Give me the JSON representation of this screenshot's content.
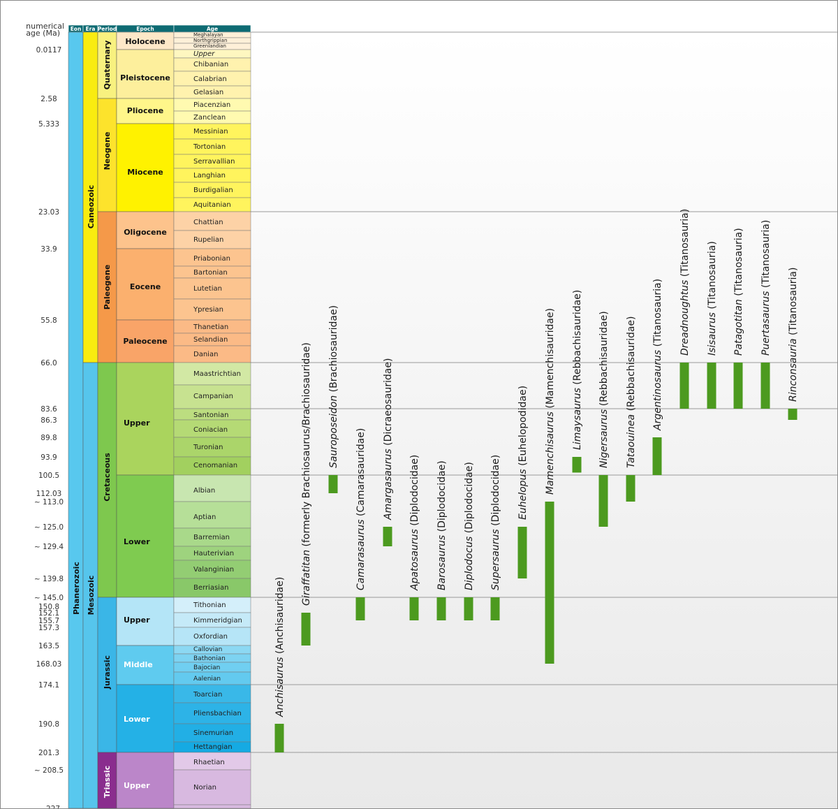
{
  "chart_data": {
    "type": "range-bar timeline",
    "title": "",
    "yaxis_label": "numerical age (Ma)",
    "y_order": "top-younger, bottom-older, piecewise scale per geologic stage",
    "header": {
      "eon": "Eon",
      "era": "Era",
      "period": "Period",
      "epoch": "Epoch",
      "age": "Age"
    },
    "tick_labels": [
      {
        "ma": 0.0117,
        "label": "0.0117"
      },
      {
        "ma": 2.58,
        "label": "2.58"
      },
      {
        "ma": 5.333,
        "label": "5.333"
      },
      {
        "ma": 23.03,
        "label": "23.03"
      },
      {
        "ma": 33.9,
        "label": "33.9"
      },
      {
        "ma": 55.8,
        "label": "55.8"
      },
      {
        "ma": 66.0,
        "label": "66.0"
      },
      {
        "ma": 83.6,
        "label": "83.6"
      },
      {
        "ma": 86.3,
        "label": "86.3"
      },
      {
        "ma": 89.8,
        "label": "89.8"
      },
      {
        "ma": 93.9,
        "label": "93.9"
      },
      {
        "ma": 100.5,
        "label": "100.5"
      },
      {
        "ma": 112.03,
        "label": "112.03"
      },
      {
        "ma": 113.0,
        "label": "~ 113.0"
      },
      {
        "ma": 125.0,
        "label": "~ 125.0"
      },
      {
        "ma": 129.4,
        "label": "~ 129.4"
      },
      {
        "ma": 139.8,
        "label": "~ 139.8"
      },
      {
        "ma": 145.0,
        "label": "~ 145.0"
      },
      {
        "ma": 150.8,
        "label": "150.8"
      },
      {
        "ma": 152.1,
        "label": "152.1"
      },
      {
        "ma": 155.7,
        "label": "155.7"
      },
      {
        "ma": 157.3,
        "label": "157.3"
      },
      {
        "ma": 163.5,
        "label": "163.5"
      },
      {
        "ma": 168.03,
        "label": "168.03"
      },
      {
        "ma": 174.1,
        "label": "174.1"
      },
      {
        "ma": 190.8,
        "label": "190.8"
      },
      {
        "ma": 201.3,
        "label": "201.3"
      },
      {
        "ma": 208.5,
        "label": "~ 208.5"
      },
      {
        "ma": 227.0,
        "label": "~ 227"
      }
    ],
    "boundary_lines_ma": [
      0,
      23.03,
      66.0,
      83.6,
      100.5,
      145.0,
      174.1,
      201.3
    ],
    "eons": [
      {
        "name": "Phanerozoic",
        "start": 0,
        "end": 227,
        "color": "#58c8ee"
      }
    ],
    "eras": [
      {
        "name": "Caneozoic",
        "start": 0,
        "end": 66.0,
        "color": "#f9ec10"
      },
      {
        "name": "Mesozoic",
        "start": 66.0,
        "end": 227,
        "color": "#56c5ec"
      }
    ],
    "periods": [
      {
        "name": "Quaternary",
        "start": 0,
        "end": 2.58,
        "color": "#f8f17f"
      },
      {
        "name": "Neogene",
        "start": 2.58,
        "end": 23.03,
        "color": "#fde32c"
      },
      {
        "name": "Paleogene",
        "start": 23.03,
        "end": 66.0,
        "color": "#f59949"
      },
      {
        "name": "Cretaceous",
        "start": 66.0,
        "end": 145.0,
        "color": "#7ec84e"
      },
      {
        "name": "Jurassic",
        "start": 145.0,
        "end": 201.3,
        "color": "#3ab6e7"
      },
      {
        "name": "Triassic",
        "start": 201.3,
        "end": 227,
        "color": "#8a2d8e"
      }
    ],
    "epochs": [
      {
        "name": "Holocene",
        "start": 0,
        "end": 0.0117,
        "color": "#fde8c8"
      },
      {
        "name": "Pleistocene",
        "start": 0.0117,
        "end": 2.58,
        "color": "#fdef9c"
      },
      {
        "name": "Pliocene",
        "start": 2.58,
        "end": 5.333,
        "color": "#fff68a"
      },
      {
        "name": "Miocene",
        "start": 5.333,
        "end": 23.03,
        "color": "#fff200"
      },
      {
        "name": "Oligocene",
        "start": 23.03,
        "end": 33.9,
        "color": "#fdc38c"
      },
      {
        "name": "Eocene",
        "start": 33.9,
        "end": 55.8,
        "color": "#fbb06e"
      },
      {
        "name": "Paleocene",
        "start": 55.8,
        "end": 66.0,
        "color": "#f9a468"
      },
      {
        "name": "Upper",
        "start": 66.0,
        "end": 100.5,
        "color": "#aad45d"
      },
      {
        "name": "Lower",
        "start": 100.5,
        "end": 145.0,
        "color": "#7fcb50"
      },
      {
        "name": "Upper",
        "start": 145.0,
        "end": 163.5,
        "color": "#b4e5f7"
      },
      {
        "name": "Middle",
        "start": 163.5,
        "end": 174.1,
        "color": "#5fcbef"
      },
      {
        "name": "Lower",
        "start": 174.1,
        "end": 201.3,
        "color": "#24b1e6"
      },
      {
        "name": "Upper",
        "start": 201.3,
        "end": 227,
        "color": "#bb86c9"
      }
    ],
    "ages": [
      {
        "name": "Meghalayan",
        "color": "#fef0d8"
      },
      {
        "name": "Northgrippian",
        "color": "#fef0d8"
      },
      {
        "name": "Greenlandian",
        "color": "#fef0d8"
      },
      {
        "name": "Upper",
        "color": "#fef7c0",
        "italic": true
      },
      {
        "name": "Chibanian",
        "color": "#fff2ae"
      },
      {
        "name": "Calabrian",
        "color": "#fff2ae"
      },
      {
        "name": "Gelasian",
        "color": "#fff2ae"
      },
      {
        "name": "Piacenzian",
        "color": "#fffab0"
      },
      {
        "name": "Zanclean",
        "color": "#fffab0"
      },
      {
        "name": "Messinian",
        "color": "#fff45d"
      },
      {
        "name": "Tortonian",
        "color": "#fff45d"
      },
      {
        "name": "Serravallian",
        "color": "#fff45d"
      },
      {
        "name": "Langhian",
        "color": "#fff45d"
      },
      {
        "name": "Burdigalian",
        "color": "#fff45d"
      },
      {
        "name": "Aquitanian",
        "color": "#fff45d"
      },
      {
        "name": "Chattian",
        "color": "#fdd2a6"
      },
      {
        "name": "Rupelian",
        "color": "#fdd2a6"
      },
      {
        "name": "Priabonian",
        "color": "#fcc48f"
      },
      {
        "name": "Bartonian",
        "color": "#fcc48f"
      },
      {
        "name": "Lutetian",
        "color": "#fcc48f"
      },
      {
        "name": "Ypresian",
        "color": "#fcc48f"
      },
      {
        "name": "Thanetian",
        "color": "#fbba86"
      },
      {
        "name": "Selandian",
        "color": "#fbba86"
      },
      {
        "name": "Danian",
        "color": "#fbba86"
      },
      {
        "name": "Maastrichtian",
        "color": "#d2e8a4"
      },
      {
        "name": "Campanian",
        "color": "#c7e290"
      },
      {
        "name": "Santonian",
        "color": "#bcdd80"
      },
      {
        "name": "Coniacian",
        "color": "#b5da75"
      },
      {
        "name": "Turonian",
        "color": "#abd56a"
      },
      {
        "name": "Cenomanian",
        "color": "#a2d05f"
      },
      {
        "name": "Albian",
        "color": "#c8e6b0"
      },
      {
        "name": "Aptian",
        "color": "#b6df98"
      },
      {
        "name": "Barremian",
        "color": "#a9d98a"
      },
      {
        "name": "Hauterivian",
        "color": "#9ed37e"
      },
      {
        "name": "Valanginian",
        "color": "#93cd73"
      },
      {
        "name": "Berriasian",
        "color": "#89c869"
      },
      {
        "name": "Tithonian",
        "color": "#d4effa"
      },
      {
        "name": "Kimmeridgian",
        "color": "#c5eaf8"
      },
      {
        "name": "Oxfordian",
        "color": "#b6e5f7"
      },
      {
        "name": "Callovian",
        "color": "#8cd8f3"
      },
      {
        "name": "Bathonian",
        "color": "#7dd3f2"
      },
      {
        "name": "Bajocian",
        "color": "#70cff1"
      },
      {
        "name": "Aalenian",
        "color": "#63caef"
      },
      {
        "name": "Toarcian",
        "color": "#39b8e8"
      },
      {
        "name": "Pliensbachian",
        "color": "#2db3e7"
      },
      {
        "name": "Sinemurian",
        "color": "#22afe5"
      },
      {
        "name": "Hettangian",
        "color": "#15aae3"
      },
      {
        "name": "Rhaetian",
        "color": "#e2c9e8"
      },
      {
        "name": "Norian",
        "color": "#d8b9e0"
      }
    ],
    "series": [
      {
        "genus": "Anchisaurus",
        "clade": "(Anchisauridae)",
        "start_ma": 190.8,
        "end_ma": 201.3
      },
      {
        "genus": "Giraffatitan",
        "clade": "(formerly Brachiosaurus/Brachiosauridae)",
        "start_ma": 152.1,
        "end_ma": 163.5
      },
      {
        "genus": "Sauroposeidon",
        "clade": "(Brachiosauridae)",
        "start_ma": 100.5,
        "end_ma": 112.03
      },
      {
        "genus": "Camarasaurus",
        "clade": "(Camarasauridae)",
        "start_ma": 145.0,
        "end_ma": 155.7
      },
      {
        "genus": "Amargasaurus",
        "clade": "(Dicraeosauridae)",
        "start_ma": 125.0,
        "end_ma": 129.4
      },
      {
        "genus": "Apatosaurus",
        "clade": "(Diplodocidae)",
        "start_ma": 145.0,
        "end_ma": 155.7
      },
      {
        "genus": "Barosaurus",
        "clade": "(Diplodocidae)",
        "start_ma": 145.0,
        "end_ma": 155.7
      },
      {
        "genus": "Diplodocus",
        "clade": "(Diplodocidae)",
        "start_ma": 145.0,
        "end_ma": 155.7
      },
      {
        "genus": "Supersaurus",
        "clade": "(Diplodocidae)",
        "start_ma": 145.0,
        "end_ma": 155.7
      },
      {
        "genus": "Euhelopus",
        "clade": "(Euhelopodidae)",
        "start_ma": 125.0,
        "end_ma": 139.8
      },
      {
        "genus": "Mamenchisaurus",
        "clade": "(Mamenchisauridae)",
        "start_ma": 113.0,
        "end_ma": 168.03
      },
      {
        "genus": "Limaysaurus",
        "clade": "(Rebbachisauridae)",
        "start_ma": 93.9,
        "end_ma": 99.6
      },
      {
        "genus": "Nigersaurus",
        "clade": "(Rebbachisauridae)",
        "start_ma": 100.5,
        "end_ma": 125.0
      },
      {
        "genus": "Tataouinea",
        "clade": "(Rebbachisauridae)",
        "start_ma": 100.5,
        "end_ma": 113.0
      },
      {
        "genus": "Argentinosaurus",
        "clade": "(Titanosauria)",
        "start_ma": 89.8,
        "end_ma": 100.5
      },
      {
        "genus": "Dreadnoughtus",
        "clade": "(Titanosauria)",
        "start_ma": 66.0,
        "end_ma": 83.6
      },
      {
        "genus": "Isisaurus",
        "clade": "(Titanosauria)",
        "start_ma": 66.0,
        "end_ma": 83.6
      },
      {
        "genus": "Patagotitan",
        "clade": "(Titanosauria)",
        "start_ma": 66.0,
        "end_ma": 83.6
      },
      {
        "genus": "Puertasaurus",
        "clade": "(Titanosauria)",
        "start_ma": 66.0,
        "end_ma": 83.6
      },
      {
        "genus": "Rinconsauria",
        "clade": "(Titanosauria)",
        "start_ma": 83.6,
        "end_ma": 86.3
      }
    ],
    "bar_color": "#4c9a1f"
  }
}
